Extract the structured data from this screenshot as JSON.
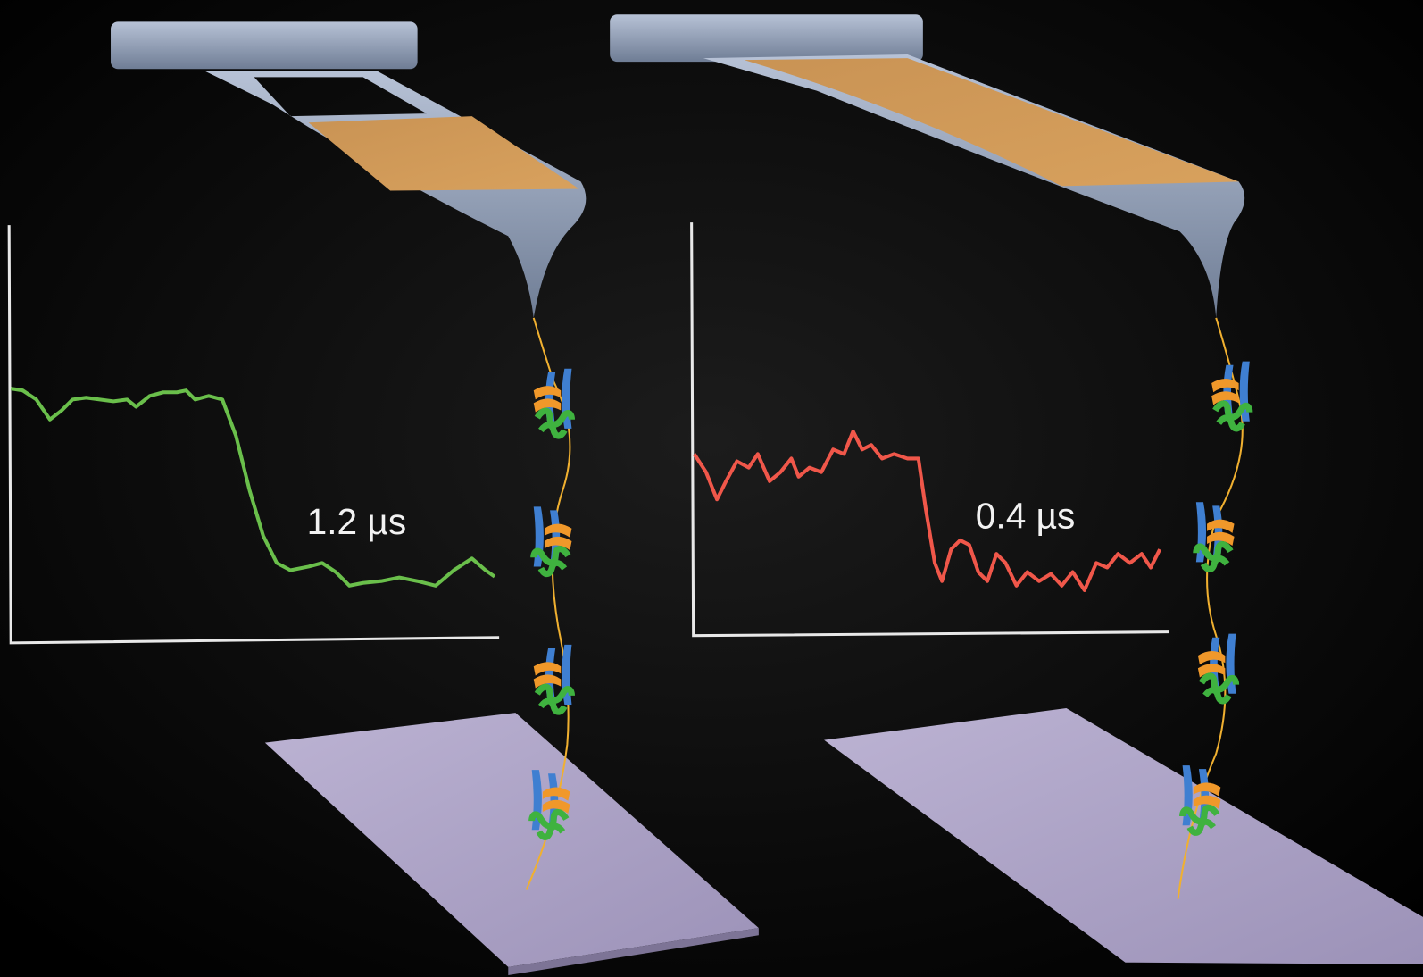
{
  "panels": [
    {
      "label": "1.2 µs"
    },
    {
      "label": "0.4 µs"
    }
  ]
}
